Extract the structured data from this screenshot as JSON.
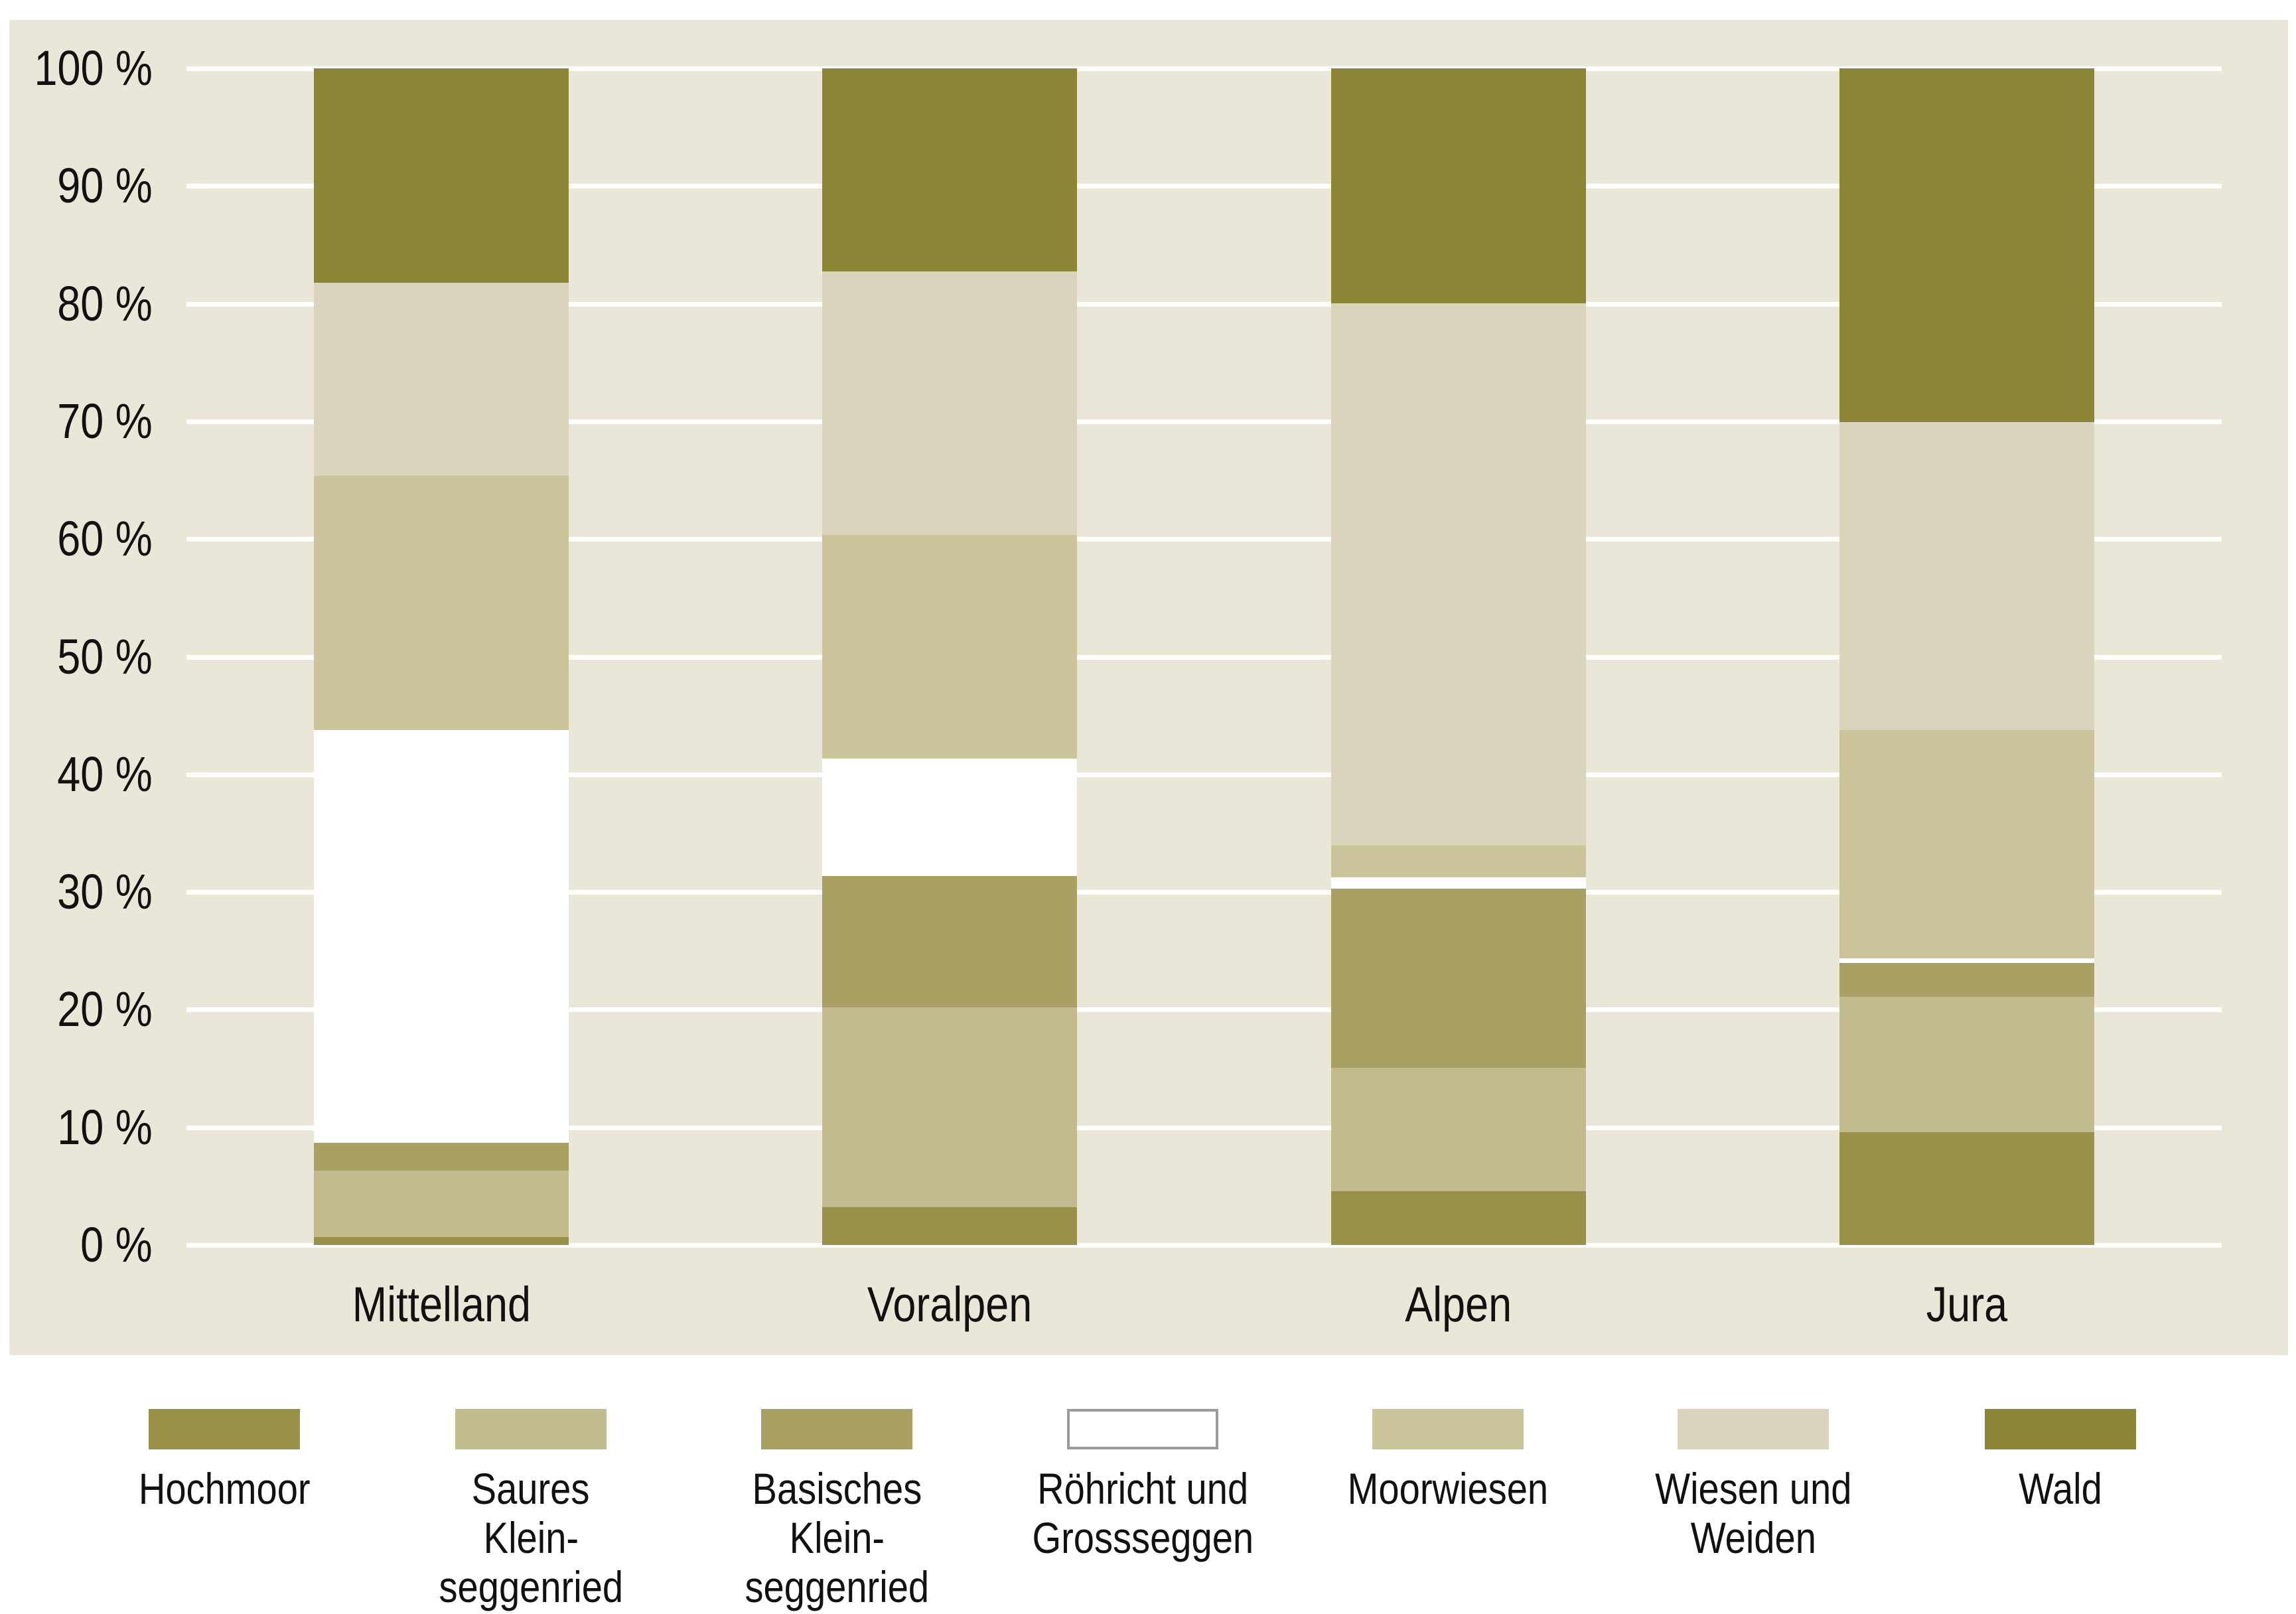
{
  "figure": {
    "background": "#ffffff",
    "panel_color": "#eae6d8",
    "gridline_color": "#ffffff",
    "text_color": "#111111"
  },
  "chart_data": {
    "type": "bar",
    "stacked": true,
    "orientation": "vertical",
    "unit": "%",
    "ylim": [
      0,
      100
    ],
    "grid": "horizontal white lines every 10%, drawn behind bars",
    "legend_position": "bottom",
    "y_ticks": [
      "100 %",
      "90 %",
      "80 %",
      "70 %",
      "60 %",
      "50 %",
      "40 %",
      "30 %",
      "20 %",
      "10 %",
      "0 %"
    ],
    "categories": [
      "Mittelland",
      "Voralpen",
      "Alpen",
      "Jura"
    ],
    "stacking_order": "first series at the bottom of each bar",
    "series": [
      {
        "name": "Hochmoor",
        "color": "#99904a",
        "values": [
          0.7,
          3.2,
          4.6,
          9.6
        ]
      },
      {
        "name": "Saures Kleinseggenried",
        "color": "#c2bb8d",
        "values": [
          5.6,
          17.0,
          10.5,
          11.5
        ]
      },
      {
        "name": "Basisches Kleinseggenried",
        "color": "#a9a164",
        "values": [
          2.4,
          11.2,
          15.2,
          2.9
        ]
      },
      {
        "name": "Röhricht und Grossseggen",
        "color": "#ffffff",
        "border": "#9b9b9b",
        "values": [
          35.0,
          10.0,
          1.0,
          0.4
        ]
      },
      {
        "name": "Moorwiesen",
        "color": "#ccc59b",
        "values": [
          21.6,
          19.0,
          2.7,
          19.4
        ]
      },
      {
        "name": "Wiesen und Weiden",
        "color": "#d9d4bb",
        "values": [
          16.4,
          22.4,
          46.1,
          26.2
        ]
      },
      {
        "name": "Wald",
        "color": "#8d8536",
        "values": [
          18.2,
          17.3,
          20.0,
          30.1
        ]
      }
    ]
  },
  "legend": {
    "items": [
      {
        "lines": [
          "Hochmoor"
        ]
      },
      {
        "lines": [
          "Saures",
          "Klein-",
          "seggenried"
        ]
      },
      {
        "lines": [
          "Basisches",
          "Klein-",
          "seggenried"
        ]
      },
      {
        "lines": [
          "Röhricht und",
          "Grossseggen"
        ]
      },
      {
        "lines": [
          "Moorwiesen"
        ]
      },
      {
        "lines": [
          "Wiesen und",
          "Weiden"
        ]
      },
      {
        "lines": [
          "Wald"
        ]
      }
    ]
  },
  "layout_note": "values are percentages of total mire-edge vegetation per region, read from the stacked bars"
}
